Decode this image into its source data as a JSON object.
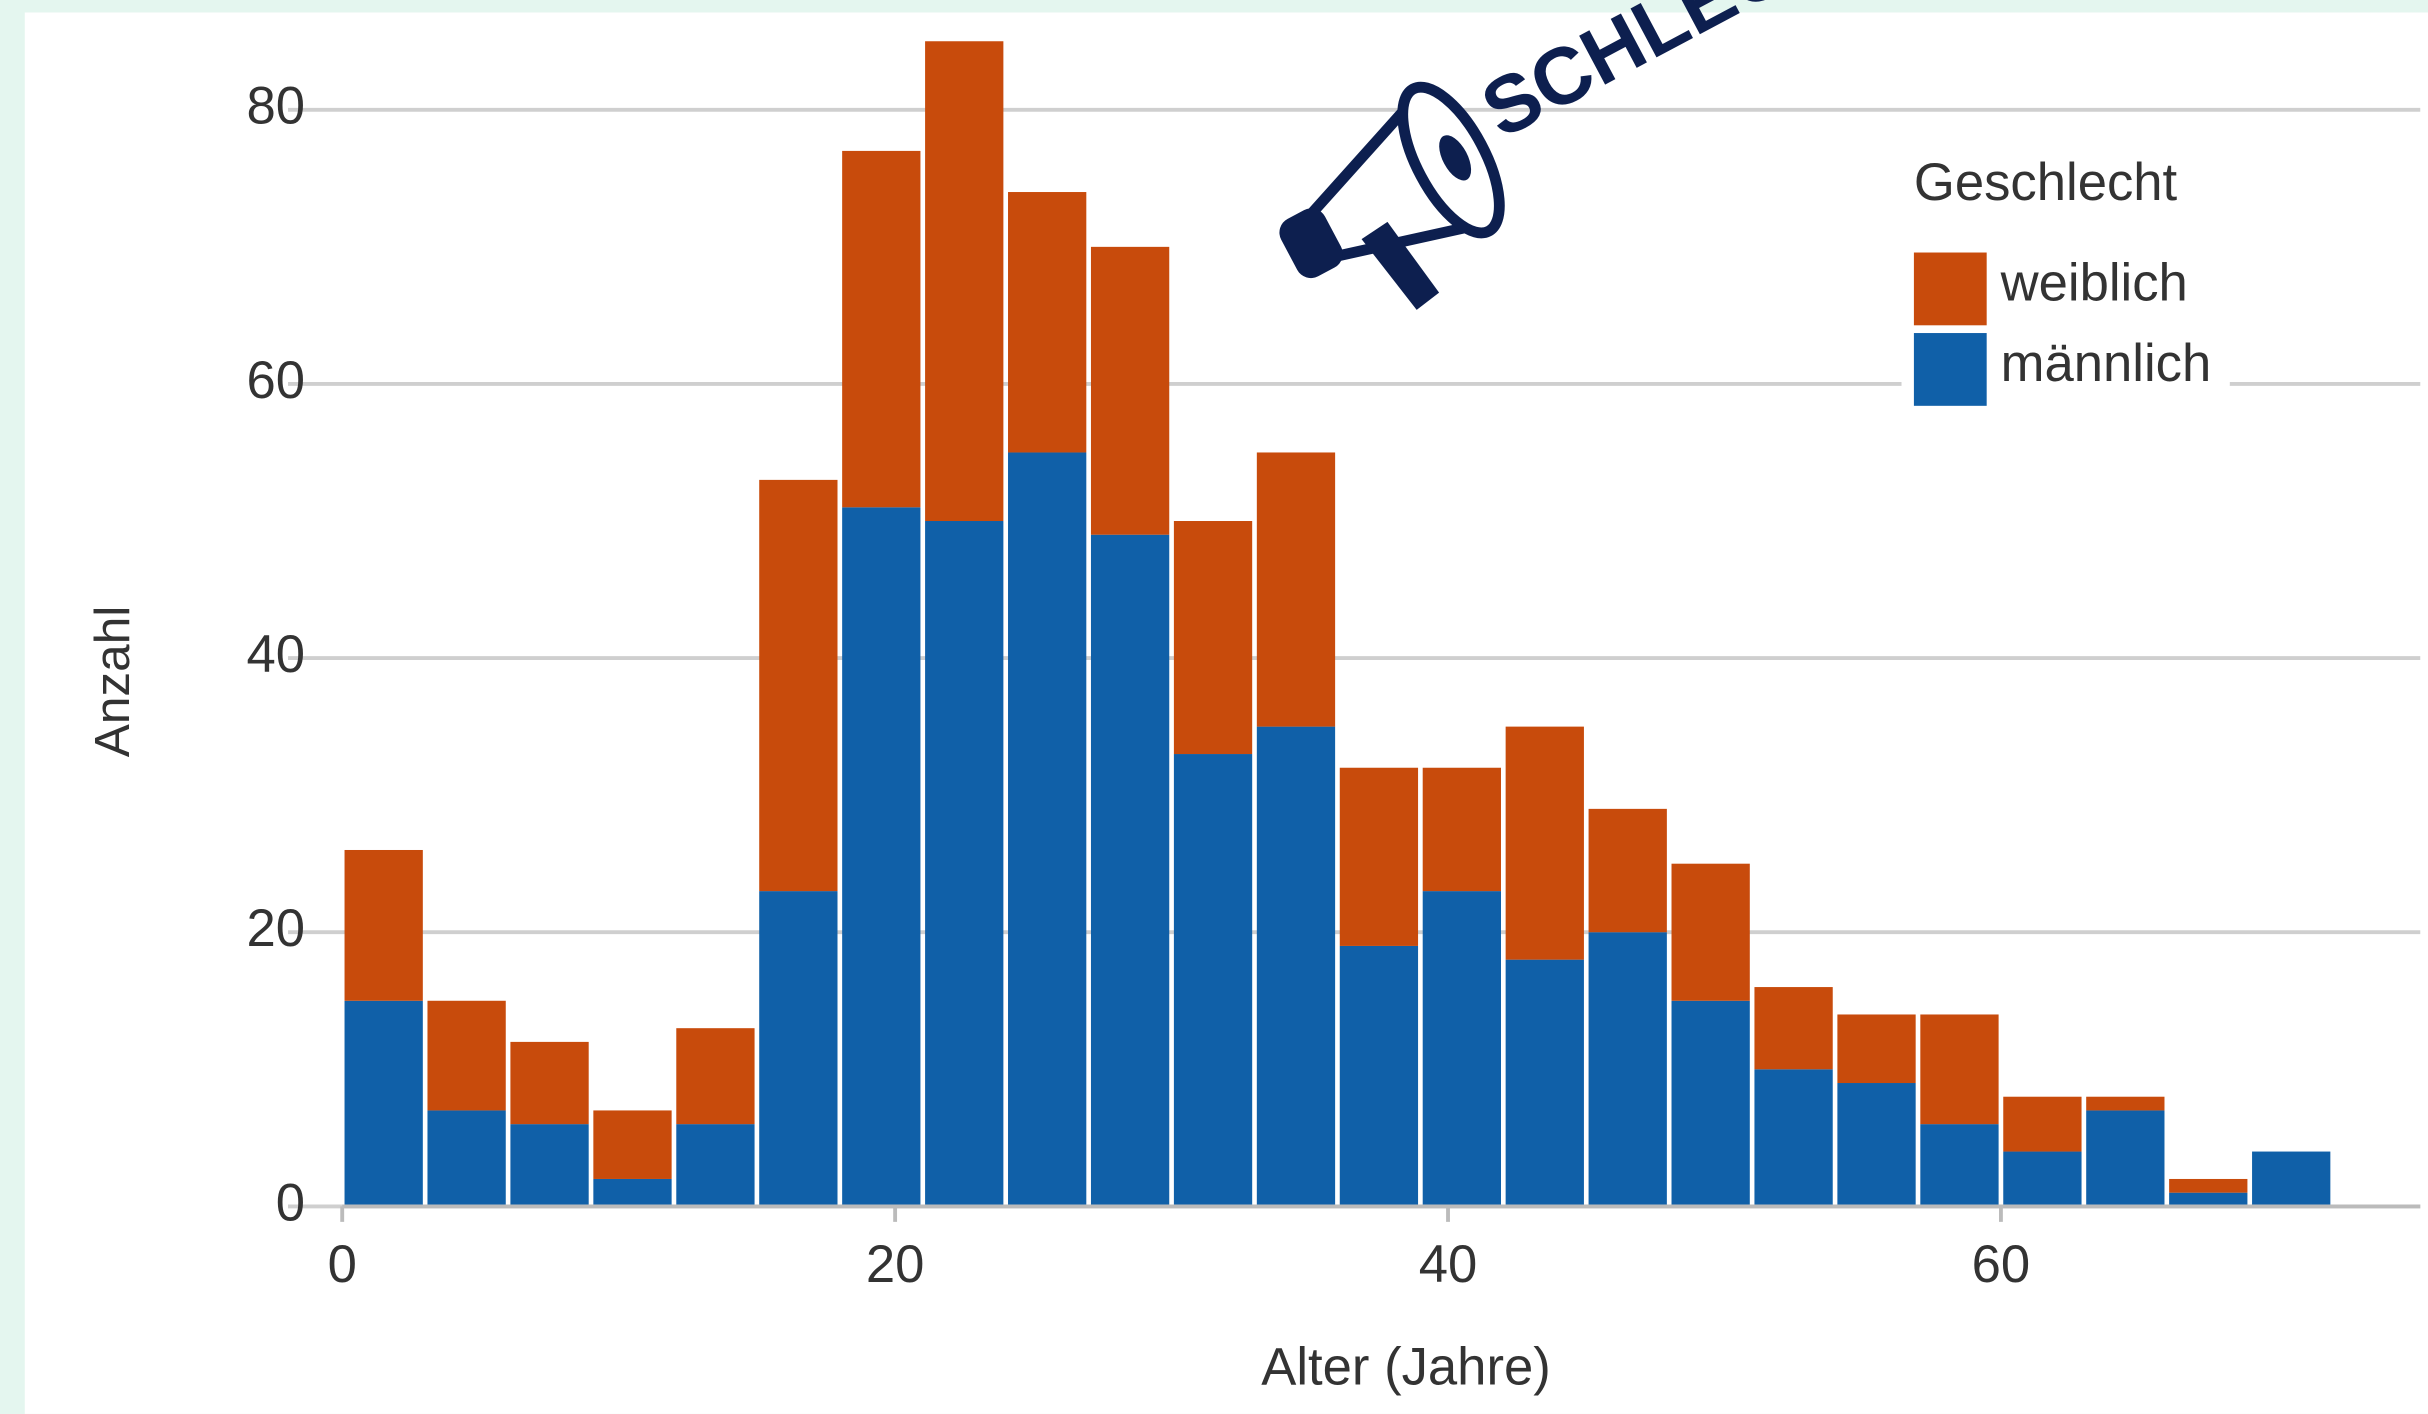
{
  "chart_data": {
    "type": "stacked-histogram",
    "annotation": "SCHLECHT",
    "xlabel": "Alter (Jahre)",
    "ylabel": "Anzahl",
    "bins": [
      0,
      3,
      6,
      9,
      12,
      15,
      18,
      21,
      24,
      27,
      30,
      33,
      36,
      39,
      42,
      45,
      48,
      51,
      54,
      57,
      60,
      63,
      66,
      69,
      72
    ],
    "series": [
      {
        "name": "weiblich",
        "color": "#c84b0c",
        "values": [
          11,
          8,
          6,
          5,
          7,
          30,
          26,
          35,
          19,
          21,
          17,
          20,
          13,
          9,
          17,
          9,
          10,
          6,
          5,
          8,
          4,
          1,
          1,
          0
        ]
      },
      {
        "name": "männlich",
        "color": "#1060a8",
        "values": [
          15,
          7,
          6,
          2,
          6,
          23,
          51,
          50,
          55,
          49,
          33,
          35,
          19,
          23,
          18,
          20,
          15,
          10,
          9,
          6,
          4,
          7,
          1,
          4
        ]
      }
    ],
    "legend_title": "Geschlecht",
    "legend": "top-right",
    "xlim": [
      0,
      75
    ],
    "ylim": [
      0,
      88
    ],
    "xticks": [
      0,
      20,
      40,
      60
    ],
    "yticks": [
      0,
      20,
      40,
      60,
      80
    ],
    "grid": true
  }
}
